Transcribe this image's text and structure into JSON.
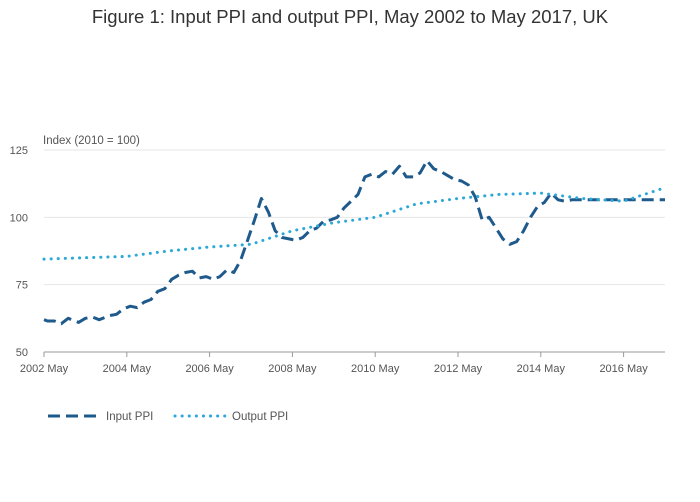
{
  "chart_data": {
    "type": "line",
    "title": "Figure 1: Input PPI and output PPI, May 2002 to May 2017, UK",
    "ylabel": "Index (2010 = 100)",
    "xlabel": "",
    "ylim": [
      50,
      125
    ],
    "yticks": [
      "50",
      "75",
      "100",
      "125"
    ],
    "xticks": [
      "2002 May",
      "2004 May",
      "2006 May",
      "2008 May",
      "2010 May",
      "2012 May",
      "2014 May",
      "2016 May"
    ],
    "grid": true,
    "legend_position": "bottom-left",
    "colors": {
      "input": "#1f5a8c",
      "output": "#2ba8d8"
    },
    "series": [
      {
        "name": "Input PPI",
        "style": "dashed",
        "x": [
          "2002-05",
          "2002-06",
          "2002-08",
          "2002-10",
          "2002-12",
          "2003-03",
          "2003-05",
          "2003-07",
          "2003-09",
          "2003-12",
          "2004-02",
          "2004-04",
          "2004-06",
          "2004-08",
          "2004-10",
          "2004-12",
          "2005-02",
          "2005-04",
          "2005-06",
          "2005-08",
          "2005-10",
          "2005-12",
          "2006-02",
          "2006-04",
          "2006-06",
          "2006-08",
          "2006-10",
          "2006-12",
          "2007-02",
          "2007-04",
          "2007-06",
          "2007-08",
          "2007-10",
          "2007-12",
          "2008-02",
          "2008-04",
          "2008-06",
          "2008-08",
          "2008-10",
          "2008-12",
          "2009-02",
          "2009-04",
          "2009-06",
          "2009-08",
          "2009-10",
          "2009-12",
          "2010-02",
          "2010-04",
          "2010-06",
          "2010-08",
          "2010-10",
          "2010-12",
          "2011-02",
          "2011-04",
          "2011-06",
          "2011-08",
          "2011-10",
          "2011-12",
          "2012-02",
          "2012-04",
          "2012-06",
          "2012-08",
          "2012-10",
          "2012-12",
          "2013-02",
          "2013-04",
          "2013-06",
          "2013-08",
          "2013-10",
          "2013-12",
          "2014-02",
          "2014-04",
          "2014-06",
          "2014-08",
          "2014-10",
          "2014-12",
          "2015-02",
          "2015-04",
          "2015-06",
          "2015-08",
          "2015-10",
          "2015-12",
          "2016-02",
          "2016-04",
          "2016-06",
          "2016-08",
          "2016-10",
          "2016-12",
          "2017-03",
          "2017-05"
        ],
        "values": [
          62,
          61.5,
          61.5,
          60.5,
          62.5,
          61,
          62.5,
          63,
          62,
          63.5,
          64,
          66,
          67,
          66.5,
          68.5,
          69.5,
          72.5,
          73.5,
          77,
          78.5,
          79.5,
          80,
          77.5,
          78,
          77,
          78,
          80.5,
          79.5,
          84,
          91.5,
          99,
          107,
          102,
          95,
          92.5,
          92,
          91.5,
          92.5,
          95,
          96,
          98.5,
          99,
          100,
          103.5,
          106,
          108.5,
          115,
          116,
          115,
          117,
          116,
          119,
          115,
          115,
          116.5,
          121,
          118,
          117,
          115.5,
          114,
          113.5,
          112,
          107.5,
          99,
          100,
          96,
          92,
          90,
          91,
          95,
          100,
          104,
          105.5,
          109,
          106.5,
          106,
          106.5,
          106.5,
          106.5,
          106.5,
          106.5,
          106.5,
          106.5,
          106.5,
          106.5,
          106.5,
          106.5,
          106.5,
          106.5,
          106.5
        ]
      },
      {
        "name": "Output PPI",
        "style": "dotted",
        "x": [
          "2002-05",
          "2003-05",
          "2004-05",
          "2005-05",
          "2006-05",
          "2007-05",
          "2008-05",
          "2009-05",
          "2010-05",
          "2011-05",
          "2012-05",
          "2013-05",
          "2014-05",
          "2015-05",
          "2016-05",
          "2017-05"
        ],
        "values": [
          84.5,
          85,
          85.5,
          87.5,
          89,
          90,
          95,
          98,
          100,
          105,
          107,
          108.5,
          109,
          107,
          106,
          111
        ]
      }
    ]
  }
}
